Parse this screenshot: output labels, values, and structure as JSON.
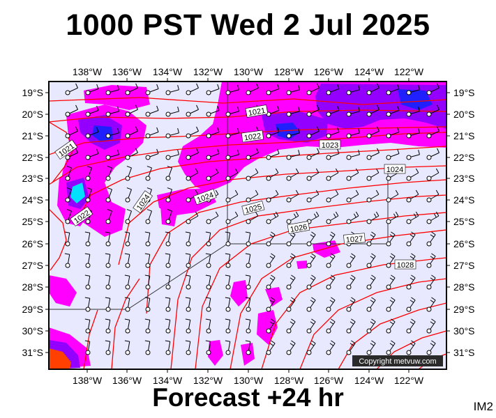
{
  "title": "1000 PST Wed 2 Jul 2025",
  "subtitle": "Forecast +24 hr",
  "corner_label": "IM2",
  "copyright": "Copyright metvuw.com",
  "colors": {
    "background_field": "#e8e8ff",
    "rain_light": "#ff00ff",
    "rain_medium": "#9400ff",
    "rain_heavy": "#2020ff",
    "rain_extreme_a": "#00e0ff",
    "rain_extreme_b": "#ff4000",
    "isobar": "#ff0000",
    "barb": "#000000",
    "frame": "#000000"
  },
  "chart_data": {
    "type": "weather-map",
    "lon_labels": [
      "138°W",
      "136°W",
      "134°W",
      "132°W",
      "130°W",
      "128°W",
      "126°W",
      "124°W",
      "122°W"
    ],
    "lat_labels": [
      "19°S",
      "20°S",
      "21°S",
      "22°S",
      "23°S",
      "24°S",
      "25°S",
      "26°S",
      "27°S",
      "28°S",
      "29°S",
      "30°S",
      "31°S"
    ],
    "isobar_labels": [
      "1021",
      "1021",
      "1022",
      "1022",
      "1023",
      "1024",
      "1024",
      "1024",
      "1025",
      "1026",
      "1027",
      "1028",
      "1028"
    ],
    "legend": "none",
    "grid": false
  }
}
